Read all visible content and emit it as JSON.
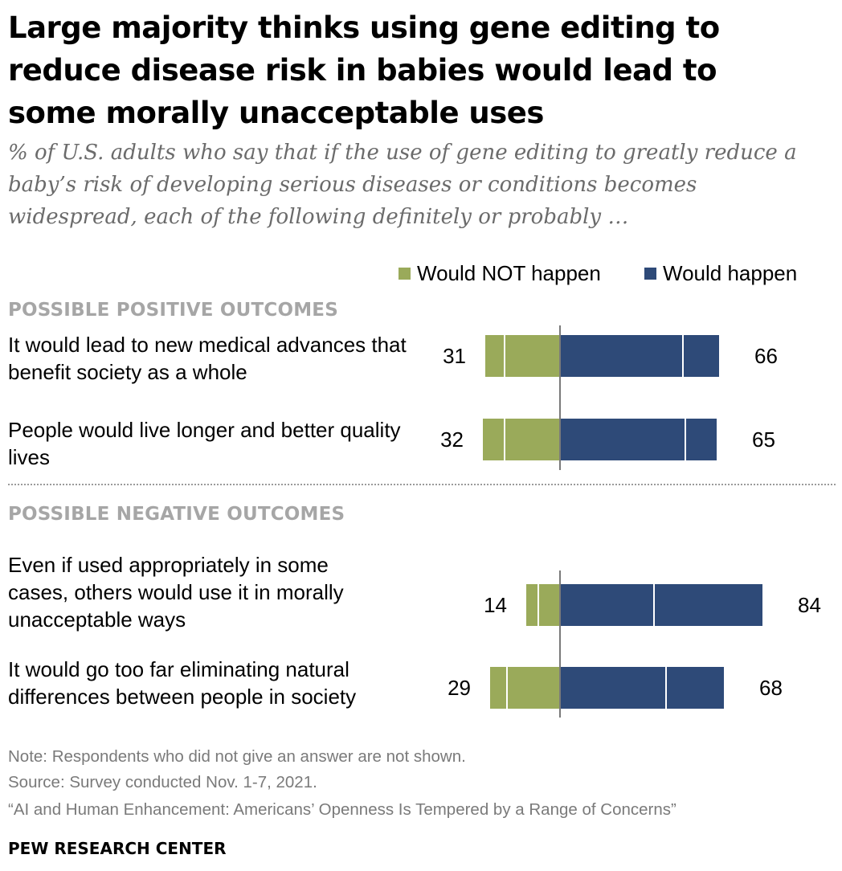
{
  "header": {
    "title": "Large majority thinks using gene editing to reduce disease risk in babies would lead to some morally unacceptable uses",
    "subtitle": "% of U.S. adults who say that if the use of gene editing to greatly reduce a baby’s risk of developing serious diseases or conditions becomes widespread, each of the following definitely or probably …"
  },
  "legend": {
    "not_happen": "Would NOT happen",
    "happen": "Would happen"
  },
  "sections": {
    "positive": "POSSIBLE POSITIVE OUTCOMES",
    "negative": "POSSIBLE NEGATIVE OUTCOMES"
  },
  "colors": {
    "not_happen": "#9aaa5a",
    "happen": "#2e4a78",
    "axis": "#7a7a7a"
  },
  "chart_data": {
    "type": "bar",
    "orientation": "horizontal-diverging",
    "categories": [
      "It would lead to new medical advances that benefit society as a whole",
      "People would live longer and better quality lives",
      "Even if used appropriately in some cases, others would use it in morally unacceptable ways",
      "It would go too far eliminating natural differences between people in society"
    ],
    "series": [
      {
        "name": "Would NOT happen",
        "values": [
          31,
          32,
          14,
          29
        ],
        "segments": [
          [
            8,
            23
          ],
          [
            9,
            23
          ],
          [
            5,
            9
          ],
          [
            7,
            22
          ]
        ]
      },
      {
        "name": "Would happen",
        "values": [
          66,
          65,
          84,
          68
        ],
        "segments": [
          [
            51,
            15
          ],
          [
            52,
            13
          ],
          [
            39,
            45
          ],
          [
            44,
            24
          ]
        ]
      }
    ],
    "groups": [
      {
        "name": "POSSIBLE POSITIVE OUTCOMES",
        "rows": [
          0,
          1
        ]
      },
      {
        "name": "POSSIBLE NEGATIVE OUTCOMES",
        "rows": [
          2,
          3
        ]
      }
    ],
    "legend_position": "top-right"
  },
  "rows": [
    {
      "label": "It would lead to new medical advances that benefit society as a whole",
      "not_happen": "31",
      "happen": "66"
    },
    {
      "label": "People would live longer and better quality lives",
      "not_happen": "32",
      "happen": "65"
    },
    {
      "label": "Even if used appropriately in some cases, others would use it in morally unacceptable ways",
      "not_happen": "14",
      "happen": "84"
    },
    {
      "label": "It would go too far eliminating natural differences between people in society",
      "not_happen": "29",
      "happen": "68"
    }
  ],
  "footer": {
    "note": "Note: Respondents who did not give an answer are not shown.",
    "source": "Source: Survey conducted Nov. 1-7, 2021.",
    "report": "“AI and Human Enhancement: Americans’ Openness Is Tempered by a Range of Concerns”",
    "brand": "PEW RESEARCH CENTER"
  }
}
